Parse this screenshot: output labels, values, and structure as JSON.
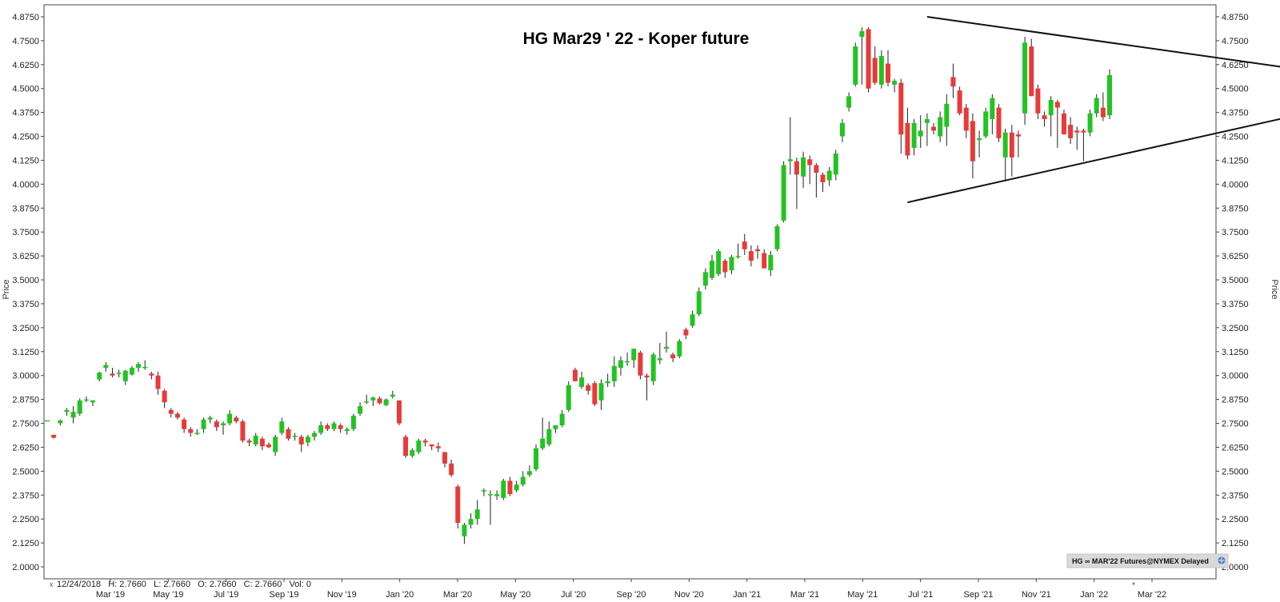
{
  "chart_data": {
    "type": "candlestick",
    "title": "HG Mar29 ' 22 - Koper future",
    "ylabel": "Price",
    "ylim": [
      1.9375,
      4.9375
    ],
    "y_ticks": [
      "4.8750",
      "4.7500",
      "4.6250",
      "4.5000",
      "4.3750",
      "4.2500",
      "4.1250",
      "4.0000",
      "3.8750",
      "3.7500",
      "3.6250",
      "3.5000",
      "3.3750",
      "3.2500",
      "3.1250",
      "3.0000",
      "2.8750",
      "2.7500",
      "2.6250",
      "2.5000",
      "2.3750",
      "2.2500",
      "2.1250",
      "2.0000"
    ],
    "x_ticks": [
      "Mar '19",
      "May '19",
      "Jul '19",
      "Sep '19",
      "Nov '19",
      "Jan '20",
      "Mar '20",
      "May '20",
      "Jul '20",
      "Sep '20",
      "Nov '20",
      "Jan '21",
      "Mar '21",
      "May '21",
      "Jul '21",
      "Sep '21",
      "Nov '21",
      "Jan '22",
      "Mar '22"
    ],
    "up_color": "#22c322",
    "down_color": "#e83a3a",
    "candles": [
      {
        "o": 2.766,
        "h": 2.766,
        "l": 2.766,
        "c": 2.766
      },
      {
        "o": 2.69,
        "h": 2.69,
        "l": 2.67,
        "c": 2.675
      },
      {
        "o": 2.75,
        "h": 2.77,
        "l": 2.74,
        "c": 2.765
      },
      {
        "o": 2.81,
        "h": 2.83,
        "l": 2.79,
        "c": 2.82
      },
      {
        "o": 2.78,
        "h": 2.84,
        "l": 2.75,
        "c": 2.81
      },
      {
        "o": 2.8,
        "h": 2.88,
        "l": 2.79,
        "c": 2.87
      },
      {
        "o": 2.875,
        "h": 2.89,
        "l": 2.86,
        "c": 2.875
      },
      {
        "o": 2.86,
        "h": 2.87,
        "l": 2.84,
        "c": 2.87
      },
      {
        "o": 2.98,
        "h": 3.02,
        "l": 2.97,
        "c": 3.015
      },
      {
        "o": 3.04,
        "h": 3.07,
        "l": 3.02,
        "c": 3.055
      },
      {
        "o": 3.01,
        "h": 3.04,
        "l": 2.99,
        "c": 3.0
      },
      {
        "o": 3.01,
        "h": 3.03,
        "l": 2.99,
        "c": 3.015
      },
      {
        "o": 2.97,
        "h": 3.03,
        "l": 2.95,
        "c": 3.025
      },
      {
        "o": 3.005,
        "h": 3.05,
        "l": 3.0,
        "c": 3.04
      },
      {
        "o": 3.04,
        "h": 3.07,
        "l": 3.02,
        "c": 3.06
      },
      {
        "o": 3.04,
        "h": 3.08,
        "l": 3.03,
        "c": 3.045
      },
      {
        "o": 3.01,
        "h": 3.02,
        "l": 2.98,
        "c": 3.0
      },
      {
        "o": 3.0,
        "h": 3.02,
        "l": 2.9,
        "c": 2.93
      },
      {
        "o": 2.92,
        "h": 2.93,
        "l": 2.83,
        "c": 2.86
      },
      {
        "o": 2.82,
        "h": 2.83,
        "l": 2.78,
        "c": 2.8
      },
      {
        "o": 2.8,
        "h": 2.81,
        "l": 2.77,
        "c": 2.78
      },
      {
        "o": 2.77,
        "h": 2.78,
        "l": 2.7,
        "c": 2.72
      },
      {
        "o": 2.72,
        "h": 2.73,
        "l": 2.68,
        "c": 2.7
      },
      {
        "o": 2.7,
        "h": 2.72,
        "l": 2.69,
        "c": 2.7
      },
      {
        "o": 2.72,
        "h": 2.78,
        "l": 2.7,
        "c": 2.77
      },
      {
        "o": 2.77,
        "h": 2.79,
        "l": 2.75,
        "c": 2.78
      },
      {
        "o": 2.76,
        "h": 2.77,
        "l": 2.71,
        "c": 2.73
      },
      {
        "o": 2.74,
        "h": 2.76,
        "l": 2.69,
        "c": 2.75
      },
      {
        "o": 2.75,
        "h": 2.82,
        "l": 2.74,
        "c": 2.8
      },
      {
        "o": 2.78,
        "h": 2.79,
        "l": 2.75,
        "c": 2.76
      },
      {
        "o": 2.76,
        "h": 2.77,
        "l": 2.65,
        "c": 2.66
      },
      {
        "o": 2.66,
        "h": 2.67,
        "l": 2.63,
        "c": 2.65
      },
      {
        "o": 2.64,
        "h": 2.7,
        "l": 2.63,
        "c": 2.685
      },
      {
        "o": 2.67,
        "h": 2.68,
        "l": 2.61,
        "c": 2.63
      },
      {
        "o": 2.64,
        "h": 2.65,
        "l": 2.62,
        "c": 2.625
      },
      {
        "o": 2.6,
        "h": 2.69,
        "l": 2.58,
        "c": 2.68
      },
      {
        "o": 2.7,
        "h": 2.78,
        "l": 2.69,
        "c": 2.76
      },
      {
        "o": 2.72,
        "h": 2.73,
        "l": 2.66,
        "c": 2.67
      },
      {
        "o": 2.68,
        "h": 2.7,
        "l": 2.66,
        "c": 2.685
      },
      {
        "o": 2.68,
        "h": 2.69,
        "l": 2.6,
        "c": 2.64
      },
      {
        "o": 2.65,
        "h": 2.69,
        "l": 2.63,
        "c": 2.68
      },
      {
        "o": 2.68,
        "h": 2.71,
        "l": 2.66,
        "c": 2.7
      },
      {
        "o": 2.7,
        "h": 2.76,
        "l": 2.69,
        "c": 2.74
      },
      {
        "o": 2.74,
        "h": 2.75,
        "l": 2.71,
        "c": 2.72
      },
      {
        "o": 2.72,
        "h": 2.76,
        "l": 2.71,
        "c": 2.75
      },
      {
        "o": 2.74,
        "h": 2.75,
        "l": 2.7,
        "c": 2.72
      },
      {
        "o": 2.71,
        "h": 2.73,
        "l": 2.69,
        "c": 2.72
      },
      {
        "o": 2.72,
        "h": 2.8,
        "l": 2.71,
        "c": 2.79
      },
      {
        "o": 2.8,
        "h": 2.86,
        "l": 2.79,
        "c": 2.84
      },
      {
        "o": 2.86,
        "h": 2.9,
        "l": 2.85,
        "c": 2.865
      },
      {
        "o": 2.87,
        "h": 2.89,
        "l": 2.84,
        "c": 2.885
      },
      {
        "o": 2.88,
        "h": 2.89,
        "l": 2.85,
        "c": 2.855
      },
      {
        "o": 2.845,
        "h": 2.88,
        "l": 2.84,
        "c": 2.875
      },
      {
        "o": 2.89,
        "h": 2.92,
        "l": 2.88,
        "c": 2.9
      },
      {
        "o": 2.87,
        "h": 2.87,
        "l": 2.74,
        "c": 2.75
      },
      {
        "o": 2.68,
        "h": 2.69,
        "l": 2.57,
        "c": 2.58
      },
      {
        "o": 2.58,
        "h": 2.62,
        "l": 2.57,
        "c": 2.61
      },
      {
        "o": 2.6,
        "h": 2.67,
        "l": 2.59,
        "c": 2.66
      },
      {
        "o": 2.66,
        "h": 2.67,
        "l": 2.63,
        "c": 2.65
      },
      {
        "o": 2.64,
        "h": 2.64,
        "l": 2.61,
        "c": 2.63
      },
      {
        "o": 2.63,
        "h": 2.65,
        "l": 2.6,
        "c": 2.62
      },
      {
        "o": 2.6,
        "h": 2.6,
        "l": 2.52,
        "c": 2.54
      },
      {
        "o": 2.54,
        "h": 2.56,
        "l": 2.47,
        "c": 2.48
      },
      {
        "o": 2.42,
        "h": 2.43,
        "l": 2.2,
        "c": 2.23
      },
      {
        "o": 2.16,
        "h": 2.23,
        "l": 2.12,
        "c": 2.22
      },
      {
        "o": 2.22,
        "h": 2.28,
        "l": 2.2,
        "c": 2.25
      },
      {
        "o": 2.25,
        "h": 2.35,
        "l": 2.22,
        "c": 2.3
      },
      {
        "o": 2.4,
        "h": 2.41,
        "l": 2.37,
        "c": 2.4
      },
      {
        "o": 2.38,
        "h": 2.4,
        "l": 2.22,
        "c": 2.38
      },
      {
        "o": 2.37,
        "h": 2.4,
        "l": 2.35,
        "c": 2.38
      },
      {
        "o": 2.36,
        "h": 2.46,
        "l": 2.35,
        "c": 2.45
      },
      {
        "o": 2.45,
        "h": 2.47,
        "l": 2.37,
        "c": 2.38
      },
      {
        "o": 2.4,
        "h": 2.45,
        "l": 2.39,
        "c": 2.43
      },
      {
        "o": 2.43,
        "h": 2.5,
        "l": 2.42,
        "c": 2.47
      },
      {
        "o": 2.48,
        "h": 2.53,
        "l": 2.47,
        "c": 2.5
      },
      {
        "o": 2.51,
        "h": 2.64,
        "l": 2.5,
        "c": 2.62
      },
      {
        "o": 2.62,
        "h": 2.78,
        "l": 2.61,
        "c": 2.67
      },
      {
        "o": 2.64,
        "h": 2.76,
        "l": 2.63,
        "c": 2.72
      },
      {
        "o": 2.72,
        "h": 2.74,
        "l": 2.7,
        "c": 2.74
      },
      {
        "o": 2.74,
        "h": 2.82,
        "l": 2.73,
        "c": 2.8
      },
      {
        "o": 2.82,
        "h": 2.97,
        "l": 2.81,
        "c": 2.95
      },
      {
        "o": 3.03,
        "h": 3.04,
        "l": 2.97,
        "c": 2.97
      },
      {
        "o": 2.94,
        "h": 3.02,
        "l": 2.93,
        "c": 2.99
      },
      {
        "o": 2.95,
        "h": 2.96,
        "l": 2.9,
        "c": 2.92
      },
      {
        "o": 2.96,
        "h": 2.97,
        "l": 2.84,
        "c": 2.85
      },
      {
        "o": 2.87,
        "h": 2.98,
        "l": 2.82,
        "c": 2.96
      },
      {
        "o": 2.96,
        "h": 3.01,
        "l": 2.94,
        "c": 2.97
      },
      {
        "o": 2.97,
        "h": 3.1,
        "l": 2.94,
        "c": 3.05
      },
      {
        "o": 3.04,
        "h": 3.1,
        "l": 3.0,
        "c": 3.08
      },
      {
        "o": 3.07,
        "h": 3.12,
        "l": 3.05,
        "c": 3.075
      },
      {
        "o": 3.08,
        "h": 3.14,
        "l": 3.04,
        "c": 3.14
      },
      {
        "o": 3.12,
        "h": 3.13,
        "l": 2.98,
        "c": 3.0
      },
      {
        "o": 3.0,
        "h": 3.01,
        "l": 2.87,
        "c": 2.99
      },
      {
        "o": 2.97,
        "h": 3.12,
        "l": 2.95,
        "c": 3.11
      },
      {
        "o": 3.08,
        "h": 3.17,
        "l": 3.06,
        "c": 3.09
      },
      {
        "o": 3.14,
        "h": 3.23,
        "l": 3.12,
        "c": 3.15
      },
      {
        "o": 3.11,
        "h": 3.12,
        "l": 3.07,
        "c": 3.09
      },
      {
        "o": 3.1,
        "h": 3.19,
        "l": 3.09,
        "c": 3.18
      },
      {
        "o": 3.24,
        "h": 3.25,
        "l": 3.19,
        "c": 3.21
      },
      {
        "o": 3.26,
        "h": 3.34,
        "l": 3.25,
        "c": 3.32
      },
      {
        "o": 3.32,
        "h": 3.46,
        "l": 3.31,
        "c": 3.44
      },
      {
        "o": 3.47,
        "h": 3.56,
        "l": 3.45,
        "c": 3.54
      },
      {
        "o": 3.51,
        "h": 3.63,
        "l": 3.5,
        "c": 3.6
      },
      {
        "o": 3.53,
        "h": 3.66,
        "l": 3.52,
        "c": 3.65
      },
      {
        "o": 3.6,
        "h": 3.61,
        "l": 3.51,
        "c": 3.54
      },
      {
        "o": 3.55,
        "h": 3.63,
        "l": 3.53,
        "c": 3.62
      },
      {
        "o": 3.62,
        "h": 3.69,
        "l": 3.61,
        "c": 3.625
      },
      {
        "o": 3.7,
        "h": 3.74,
        "l": 3.63,
        "c": 3.66
      },
      {
        "o": 3.65,
        "h": 3.68,
        "l": 3.57,
        "c": 3.6
      },
      {
        "o": 3.66,
        "h": 3.68,
        "l": 3.61,
        "c": 3.65
      },
      {
        "o": 3.64,
        "h": 3.66,
        "l": 3.56,
        "c": 3.56
      },
      {
        "o": 3.55,
        "h": 3.65,
        "l": 3.52,
        "c": 3.63
      },
      {
        "o": 3.66,
        "h": 3.79,
        "l": 3.65,
        "c": 3.78
      },
      {
        "o": 3.81,
        "h": 4.12,
        "l": 3.8,
        "c": 4.1
      },
      {
        "o": 4.12,
        "h": 4.35,
        "l": 4.05,
        "c": 4.13
      },
      {
        "o": 4.12,
        "h": 4.14,
        "l": 3.87,
        "c": 4.05
      },
      {
        "o": 4.04,
        "h": 4.17,
        "l": 3.98,
        "c": 4.14
      },
      {
        "o": 4.13,
        "h": 4.15,
        "l": 4.0,
        "c": 4.1
      },
      {
        "o": 4.1,
        "h": 4.11,
        "l": 3.93,
        "c": 4.06
      },
      {
        "o": 4.05,
        "h": 4.06,
        "l": 3.96,
        "c": 4.01
      },
      {
        "o": 4.02,
        "h": 4.09,
        "l": 3.99,
        "c": 4.07
      },
      {
        "o": 4.05,
        "h": 4.18,
        "l": 4.02,
        "c": 4.16
      },
      {
        "o": 4.25,
        "h": 4.34,
        "l": 4.22,
        "c": 4.32
      },
      {
        "o": 4.4,
        "h": 4.48,
        "l": 4.38,
        "c": 4.46
      },
      {
        "o": 4.52,
        "h": 4.74,
        "l": 4.51,
        "c": 4.72
      },
      {
        "o": 4.77,
        "h": 4.82,
        "l": 4.52,
        "c": 4.8
      },
      {
        "o": 4.81,
        "h": 4.82,
        "l": 4.48,
        "c": 4.5
      },
      {
        "o": 4.66,
        "h": 4.72,
        "l": 4.52,
        "c": 4.53
      },
      {
        "o": 4.52,
        "h": 4.7,
        "l": 4.5,
        "c": 4.67
      },
      {
        "o": 4.63,
        "h": 4.7,
        "l": 4.51,
        "c": 4.53
      },
      {
        "o": 4.52,
        "h": 4.55,
        "l": 4.48,
        "c": 4.54
      },
      {
        "o": 4.53,
        "h": 4.55,
        "l": 4.16,
        "c": 4.26
      },
      {
        "o": 4.32,
        "h": 4.4,
        "l": 4.13,
        "c": 4.15
      },
      {
        "o": 4.19,
        "h": 4.34,
        "l": 4.15,
        "c": 4.32
      },
      {
        "o": 4.25,
        "h": 4.36,
        "l": 4.19,
        "c": 4.28
      },
      {
        "o": 4.32,
        "h": 4.37,
        "l": 4.2,
        "c": 4.34
      },
      {
        "o": 4.3,
        "h": 4.32,
        "l": 4.26,
        "c": 4.28
      },
      {
        "o": 4.25,
        "h": 4.38,
        "l": 4.22,
        "c": 4.35
      },
      {
        "o": 4.3,
        "h": 4.47,
        "l": 4.2,
        "c": 4.42
      },
      {
        "o": 4.56,
        "h": 4.63,
        "l": 4.45,
        "c": 4.51
      },
      {
        "o": 4.49,
        "h": 4.51,
        "l": 4.36,
        "c": 4.37
      },
      {
        "o": 4.4,
        "h": 4.42,
        "l": 4.24,
        "c": 4.28
      },
      {
        "o": 4.33,
        "h": 4.37,
        "l": 4.03,
        "c": 4.12
      },
      {
        "o": 4.23,
        "h": 4.28,
        "l": 4.14,
        "c": 4.24
      },
      {
        "o": 4.25,
        "h": 4.4,
        "l": 4.24,
        "c": 4.38
      },
      {
        "o": 4.34,
        "h": 4.47,
        "l": 4.26,
        "c": 4.45
      },
      {
        "o": 4.4,
        "h": 4.42,
        "l": 4.22,
        "c": 4.24
      },
      {
        "o": 4.14,
        "h": 4.29,
        "l": 4.02,
        "c": 4.27
      },
      {
        "o": 4.27,
        "h": 4.31,
        "l": 4.04,
        "c": 4.14
      },
      {
        "o": 4.26,
        "h": 4.28,
        "l": 4.14,
        "c": 4.25
      },
      {
        "o": 4.37,
        "h": 4.77,
        "l": 4.31,
        "c": 4.74
      },
      {
        "o": 4.72,
        "h": 4.76,
        "l": 4.46,
        "c": 4.46
      },
      {
        "o": 4.5,
        "h": 4.52,
        "l": 4.34,
        "c": 4.37
      },
      {
        "o": 4.36,
        "h": 4.38,
        "l": 4.3,
        "c": 4.34
      },
      {
        "o": 4.36,
        "h": 4.46,
        "l": 4.25,
        "c": 4.44
      },
      {
        "o": 4.43,
        "h": 4.44,
        "l": 4.19,
        "c": 4.4
      },
      {
        "o": 4.37,
        "h": 4.39,
        "l": 4.26,
        "c": 4.26
      },
      {
        "o": 4.31,
        "h": 4.35,
        "l": 4.21,
        "c": 4.24
      },
      {
        "o": 4.28,
        "h": 4.3,
        "l": 4.18,
        "c": 4.27
      },
      {
        "o": 4.28,
        "h": 4.29,
        "l": 4.12,
        "c": 4.27
      },
      {
        "o": 4.27,
        "h": 4.39,
        "l": 4.25,
        "c": 4.37
      },
      {
        "o": 4.37,
        "h": 4.47,
        "l": 4.35,
        "c": 4.45
      },
      {
        "o": 4.4,
        "h": 4.48,
        "l": 4.33,
        "c": 4.35
      },
      {
        "o": 4.36,
        "h": 4.6,
        "l": 4.34,
        "c": 4.57
      }
    ],
    "annotations": [
      {
        "type": "trendline",
        "name": "upper-resistance-line",
        "x_index": [
          135,
          190
        ],
        "y": [
          4.875,
          4.61
        ]
      },
      {
        "type": "trendline",
        "name": "lower-support-line",
        "x_index": [
          132,
          193
        ],
        "y": [
          3.905,
          4.37
        ]
      }
    ],
    "current_marker": {
      "price": 4.57
    }
  },
  "status_bar": {
    "marker": "x",
    "text": "12/24/2018   H: 2.7660   L: 2.7660   O: 2.7660   C: 2.7660   Vol: 0"
  },
  "source_label": "HG ∞ MAR'22 Futures@NYMEX Delayed",
  "source_icon": "globe-icon"
}
